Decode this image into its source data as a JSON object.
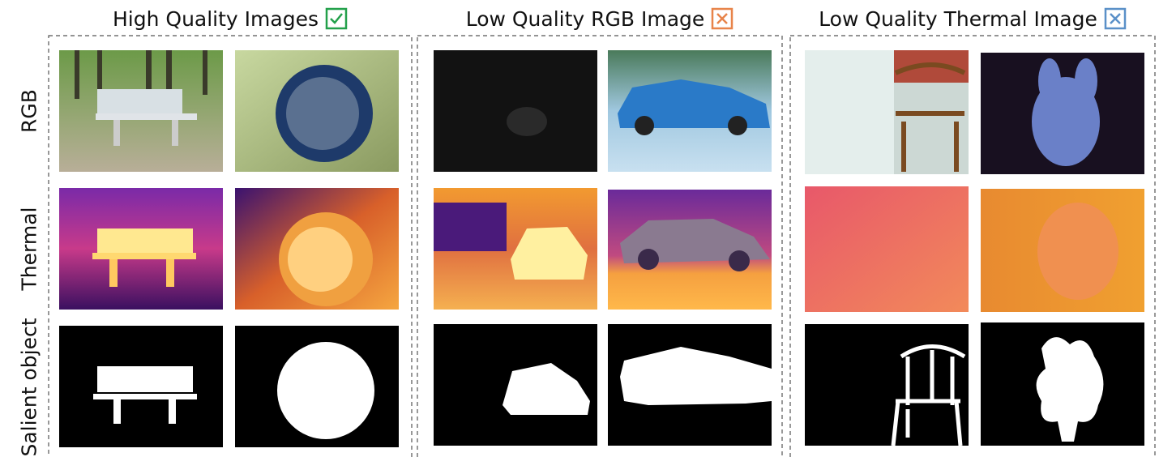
{
  "headers": [
    "High Quality Images",
    "Low Quality RGB Image",
    "Low Quality Thermal Image"
  ],
  "row_labels": [
    "RGB",
    "Thermal",
    "Salient object"
  ]
}
